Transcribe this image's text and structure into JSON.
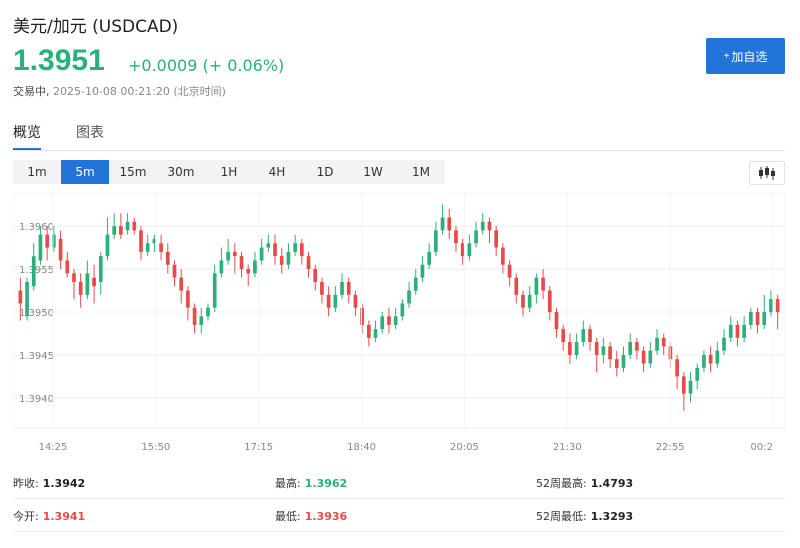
{
  "header": {
    "title": "美元/加元 (USDCAD)",
    "price": "1.3951",
    "change": "+0.0009 (+ 0.06%)",
    "status_label": "交易中,",
    "timestamp": "2025-10-08 00:21:20 (北京时间)",
    "add_button_icon": "plus-icon",
    "add_button_label": "加自选"
  },
  "colors": {
    "up": "#2bb07b",
    "down": "#e84a4a",
    "accent": "#2374d8"
  },
  "tabs": [
    {
      "label": "概览",
      "active": true
    },
    {
      "label": "图表",
      "active": false
    }
  ],
  "periods": [
    {
      "label": "1m",
      "active": false
    },
    {
      "label": "5m",
      "active": true
    },
    {
      "label": "15m",
      "active": false
    },
    {
      "label": "30m",
      "active": false
    },
    {
      "label": "1H",
      "active": false
    },
    {
      "label": "4H",
      "active": false
    },
    {
      "label": "1D",
      "active": false
    },
    {
      "label": "1W",
      "active": false
    },
    {
      "label": "1M",
      "active": false
    }
  ],
  "chart_type_icon": "candlestick-icon",
  "chart_data": {
    "type": "candlestick",
    "x_ticks": [
      "14:25",
      "15:50",
      "17:15",
      "18:40",
      "20:05",
      "21:30",
      "22:55",
      "00:2"
    ],
    "y_ticks": [
      "1.3960",
      "1.3955",
      "1.3950",
      "1.3945",
      "1.3940"
    ],
    "ylim": [
      1.39365,
      1.39635
    ],
    "candles": [
      [
        1.39525,
        1.3951,
        1.3954,
        1.3949
      ],
      [
        1.39495,
        1.39535,
        1.3954,
        1.3949
      ],
      [
        1.3953,
        1.39565,
        1.3958,
        1.39525
      ],
      [
        1.3956,
        1.3959,
        1.396,
        1.39555
      ],
      [
        1.3959,
        1.39575,
        1.396,
        1.3956
      ],
      [
        1.39575,
        1.3959,
        1.396,
        1.3957
      ],
      [
        1.39585,
        1.3956,
        1.39595,
        1.3955
      ],
      [
        1.3956,
        1.39545,
        1.3957,
        1.3954
      ],
      [
        1.39545,
        1.39535,
        1.3955,
        1.39515
      ],
      [
        1.39535,
        1.3952,
        1.39545,
        1.39505
      ],
      [
        1.3952,
        1.39545,
        1.3956,
        1.39515
      ],
      [
        1.3954,
        1.3953,
        1.39555,
        1.3951
      ],
      [
        1.39535,
        1.39565,
        1.3957,
        1.3952
      ],
      [
        1.39565,
        1.3959,
        1.3961,
        1.3956
      ],
      [
        1.3959,
        1.396,
        1.39615,
        1.39585
      ],
      [
        1.396,
        1.3959,
        1.39615,
        1.39585
      ],
      [
        1.39595,
        1.39605,
        1.39615,
        1.3959
      ],
      [
        1.39605,
        1.39595,
        1.3961,
        1.3959
      ],
      [
        1.39595,
        1.3957,
        1.396,
        1.3956
      ],
      [
        1.3957,
        1.3958,
        1.3959,
        1.39565
      ],
      [
        1.3958,
        1.39585,
        1.3959,
        1.3957
      ],
      [
        1.3958,
        1.3957,
        1.3959,
        1.3956
      ],
      [
        1.3957,
        1.39555,
        1.3958,
        1.39545
      ],
      [
        1.39555,
        1.3954,
        1.3956,
        1.3953
      ],
      [
        1.3954,
        1.39525,
        1.3955,
        1.3951
      ],
      [
        1.39525,
        1.39505,
        1.3953,
        1.3949
      ],
      [
        1.39505,
        1.39485,
        1.3951,
        1.39475
      ],
      [
        1.39485,
        1.39495,
        1.39505,
        1.39475
      ],
      [
        1.39495,
        1.39505,
        1.3951,
        1.3949
      ],
      [
        1.39505,
        1.39545,
        1.39555,
        1.395
      ],
      [
        1.39545,
        1.3956,
        1.39575,
        1.3954
      ],
      [
        1.3956,
        1.3957,
        1.39585,
        1.39555
      ],
      [
        1.3957,
        1.39565,
        1.3958,
        1.39545
      ],
      [
        1.39565,
        1.3955,
        1.3957,
        1.3954
      ],
      [
        1.3955,
        1.39545,
        1.39555,
        1.3953
      ],
      [
        1.39545,
        1.3956,
        1.3957,
        1.3954
      ],
      [
        1.3956,
        1.39575,
        1.39585,
        1.39555
      ],
      [
        1.39575,
        1.3958,
        1.3959,
        1.3957
      ],
      [
        1.3958,
        1.39565,
        1.3959,
        1.39555
      ],
      [
        1.39565,
        1.39555,
        1.39575,
        1.39545
      ],
      [
        1.39555,
        1.3957,
        1.3958,
        1.3955
      ],
      [
        1.3957,
        1.3958,
        1.3959,
        1.39565
      ],
      [
        1.3958,
        1.39565,
        1.39585,
        1.39555
      ],
      [
        1.39565,
        1.3955,
        1.3957,
        1.3954
      ],
      [
        1.3955,
        1.39535,
        1.39555,
        1.39525
      ],
      [
        1.39535,
        1.3952,
        1.3954,
        1.3951
      ],
      [
        1.3952,
        1.39505,
        1.3953,
        1.39495
      ],
      [
        1.39505,
        1.3952,
        1.3953,
        1.395
      ],
      [
        1.3952,
        1.39535,
        1.39545,
        1.39515
      ],
      [
        1.39535,
        1.3952,
        1.3954,
        1.3951
      ],
      [
        1.3952,
        1.39505,
        1.39525,
        1.39495
      ],
      [
        1.39505,
        1.39485,
        1.3951,
        1.39475
      ],
      [
        1.39485,
        1.3947,
        1.3949,
        1.3946
      ],
      [
        1.3947,
        1.3948,
        1.3949,
        1.39465
      ],
      [
        1.3948,
        1.39495,
        1.395,
        1.39475
      ],
      [
        1.39495,
        1.39485,
        1.39505,
        1.39475
      ],
      [
        1.39485,
        1.39495,
        1.39505,
        1.3948
      ],
      [
        1.39495,
        1.3951,
        1.39515,
        1.3949
      ],
      [
        1.3951,
        1.39525,
        1.39535,
        1.39505
      ],
      [
        1.39525,
        1.3954,
        1.3955,
        1.3952
      ],
      [
        1.3954,
        1.39555,
        1.39565,
        1.39535
      ],
      [
        1.39555,
        1.3957,
        1.3958,
        1.3955
      ],
      [
        1.3957,
        1.39595,
        1.39605,
        1.39565
      ],
      [
        1.39595,
        1.3961,
        1.39625,
        1.3959
      ],
      [
        1.3961,
        1.39595,
        1.3962,
        1.39585
      ],
      [
        1.39595,
        1.3958,
        1.396,
        1.3957
      ],
      [
        1.3958,
        1.39565,
        1.39585,
        1.39555
      ],
      [
        1.39565,
        1.3958,
        1.3959,
        1.3956
      ],
      [
        1.3958,
        1.39595,
        1.39605,
        1.39575
      ],
      [
        1.39595,
        1.39605,
        1.39615,
        1.3959
      ],
      [
        1.39605,
        1.39595,
        1.3961,
        1.3958
      ],
      [
        1.39595,
        1.39575,
        1.396,
        1.39565
      ],
      [
        1.39575,
        1.39555,
        1.3958,
        1.39545
      ],
      [
        1.39555,
        1.3954,
        1.3956,
        1.3953
      ],
      [
        1.3954,
        1.3952,
        1.39545,
        1.3951
      ],
      [
        1.3952,
        1.39505,
        1.39525,
        1.39495
      ],
      [
        1.39505,
        1.3952,
        1.3953,
        1.395
      ],
      [
        1.3952,
        1.3954,
        1.39545,
        1.3951
      ],
      [
        1.3954,
        1.39525,
        1.3955,
        1.39515
      ],
      [
        1.39525,
        1.395,
        1.3953,
        1.3949
      ],
      [
        1.395,
        1.3948,
        1.39505,
        1.3947
      ],
      [
        1.3948,
        1.39465,
        1.39485,
        1.39455
      ],
      [
        1.39465,
        1.3945,
        1.39475,
        1.3944
      ],
      [
        1.3945,
        1.39465,
        1.39475,
        1.39445
      ],
      [
        1.39465,
        1.3948,
        1.3949,
        1.3946
      ],
      [
        1.3948,
        1.39465,
        1.39485,
        1.39455
      ],
      [
        1.39465,
        1.3945,
        1.3947,
        1.3943
      ],
      [
        1.3945,
        1.3946,
        1.3947,
        1.3944
      ],
      [
        1.3946,
        1.39445,
        1.39465,
        1.39435
      ],
      [
        1.39445,
        1.39435,
        1.39455,
        1.39425
      ],
      [
        1.39435,
        1.3945,
        1.3946,
        1.3943
      ],
      [
        1.3945,
        1.39465,
        1.39475,
        1.39445
      ],
      [
        1.39465,
        1.39455,
        1.3947,
        1.39445
      ],
      [
        1.39455,
        1.3944,
        1.3946,
        1.3943
      ],
      [
        1.3944,
        1.39455,
        1.39465,
        1.39435
      ],
      [
        1.39455,
        1.3947,
        1.3948,
        1.3945
      ],
      [
        1.3947,
        1.3946,
        1.39475,
        1.3945
      ],
      [
        1.3946,
        1.39445,
        1.39465,
        1.39435
      ],
      [
        1.39445,
        1.39425,
        1.3945,
        1.3941
      ],
      [
        1.39425,
        1.39405,
        1.3943,
        1.39385
      ],
      [
        1.39405,
        1.3942,
        1.3943,
        1.39395
      ],
      [
        1.3942,
        1.39435,
        1.3944,
        1.3941
      ],
      [
        1.39435,
        1.3945,
        1.39455,
        1.3943
      ],
      [
        1.3945,
        1.3944,
        1.3946,
        1.3943
      ],
      [
        1.3944,
        1.39455,
        1.39465,
        1.39435
      ],
      [
        1.39455,
        1.3947,
        1.3948,
        1.3945
      ],
      [
        1.3947,
        1.39485,
        1.39495,
        1.39465
      ],
      [
        1.39485,
        1.3947,
        1.3949,
        1.3946
      ],
      [
        1.3947,
        1.39485,
        1.39495,
        1.39465
      ],
      [
        1.39485,
        1.395,
        1.39505,
        1.3948
      ],
      [
        1.395,
        1.39485,
        1.39505,
        1.39475
      ],
      [
        1.39485,
        1.395,
        1.3952,
        1.3948
      ],
      [
        1.395,
        1.39515,
        1.39525,
        1.39495
      ],
      [
        1.39515,
        1.395,
        1.3952,
        1.3948
      ]
    ]
  },
  "stats": [
    [
      {
        "label": "昨收:",
        "value": "1.3942",
        "tone": "neutral"
      },
      {
        "label": "最高:",
        "value": "1.3962",
        "tone": "up"
      },
      {
        "label": "52周最高:",
        "value": "1.4793",
        "tone": "neutral"
      }
    ],
    [
      {
        "label": "今开:",
        "value": "1.3941",
        "tone": "down"
      },
      {
        "label": "最低:",
        "value": "1.3936",
        "tone": "down"
      },
      {
        "label": "52周最低:",
        "value": "1.3293",
        "tone": "neutral"
      }
    ]
  ]
}
